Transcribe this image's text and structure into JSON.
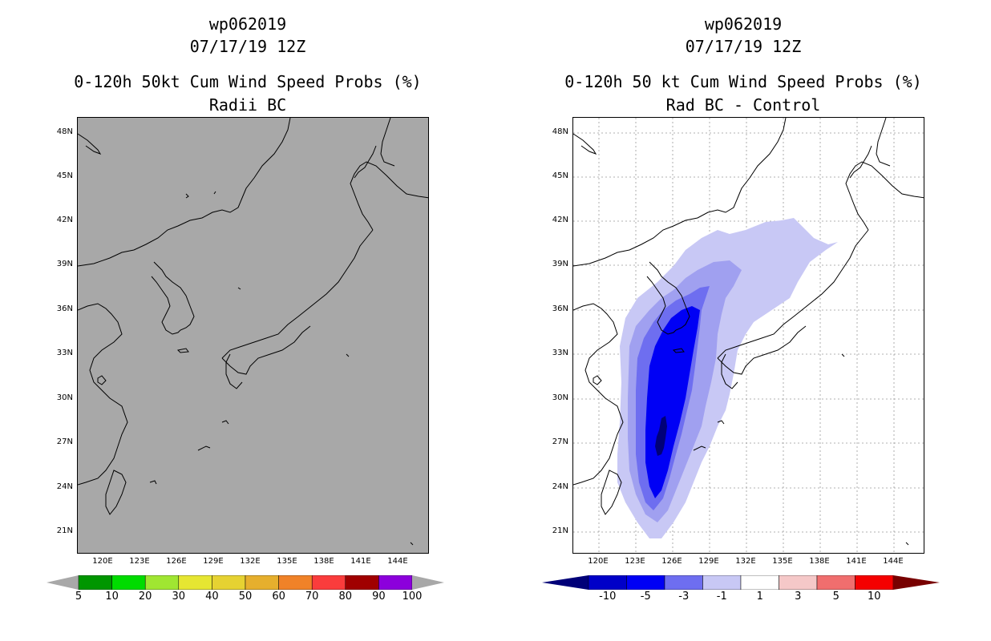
{
  "left": {
    "title_line1": "wp062019",
    "title_line2": "07/17/19 12Z",
    "title_line3": "0-120h 50kt Cum Wind Speed Probs (%)",
    "title_line4": "Radii BC",
    "lat_labels": [
      "48N",
      "45N",
      "42N",
      "39N",
      "36N",
      "33N",
      "30N",
      "27N",
      "24N",
      "21N"
    ],
    "lon_labels": [
      "120E",
      "123E",
      "126E",
      "129E",
      "132E",
      "135E",
      "138E",
      "141E",
      "144E"
    ],
    "colorbar": {
      "labels": [
        "5",
        "10",
        "20",
        "30",
        "40",
        "50",
        "60",
        "70",
        "80",
        "90",
        "100"
      ],
      "colors": [
        "#009600",
        "#00dc00",
        "#a0e632",
        "#e6e632",
        "#e6d232",
        "#e6af2d",
        "#f08228",
        "#fa3c3c",
        "#a00000",
        "#8c00dc"
      ],
      "arrow_color": "#a8a8a8"
    }
  },
  "right": {
    "title_line1": "wp062019",
    "title_line2": "07/17/19 12Z",
    "title_line3": "0-120h 50 kt Cum Wind Speed Probs (%)",
    "title_line4": "Rad BC - Control",
    "lat_labels": [
      "48N",
      "45N",
      "42N",
      "39N",
      "36N",
      "33N",
      "30N",
      "27N",
      "24N",
      "21N"
    ],
    "lon_labels": [
      "120E",
      "123E",
      "126E",
      "129E",
      "132E",
      "135E",
      "138E",
      "141E",
      "144E"
    ],
    "colorbar": {
      "labels": [
        "-10",
        "-5",
        "-3",
        "-1",
        "1",
        "3",
        "5",
        "10"
      ],
      "colors": [
        "#0000c8",
        "#0000f5",
        "#6e6ef0",
        "#c8c8f5",
        "#ffffff",
        "#f5c8c8",
        "#f06e6e",
        "#f50000"
      ],
      "left_arrow_color": "#000078",
      "right_arrow_color": "#780000"
    },
    "contour_colors": [
      "#c8c8f5",
      "#a0a0f0",
      "#6e6ef0",
      "#0000f5",
      "#000078"
    ]
  }
}
